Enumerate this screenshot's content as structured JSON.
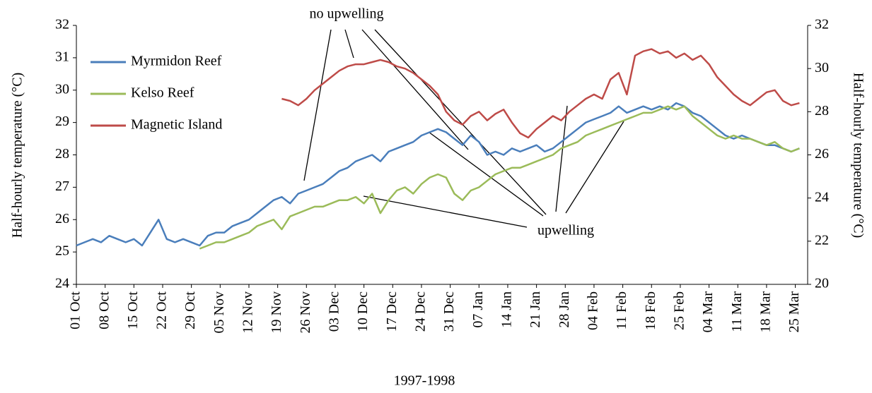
{
  "chart_data": {
    "type": "line",
    "x_label": "1997-1998",
    "y_label": "Half-hourly temperature (°C)",
    "y2_label": "Half-hourly temperature (°C)",
    "annotations": [
      "no upwelling",
      "upwelling"
    ],
    "legend": "top-left",
    "x": [
      0,
      2,
      4,
      6,
      8,
      10,
      12,
      14,
      16,
      18,
      20,
      22,
      24,
      26,
      28,
      30,
      32,
      34,
      36,
      38,
      40,
      42,
      44,
      46,
      48,
      50,
      52,
      54,
      56,
      58,
      60,
      62,
      64,
      66,
      68,
      70,
      72,
      74,
      76,
      78,
      80,
      82,
      84,
      86,
      88,
      90,
      92,
      94,
      96,
      98,
      100,
      102,
      104,
      106,
      108,
      110,
      112,
      114,
      116,
      118,
      120,
      122,
      124,
      126,
      128,
      130,
      132,
      134,
      136,
      138,
      140,
      142,
      144,
      146,
      148,
      150,
      152,
      154,
      156,
      158,
      160,
      162,
      164,
      166,
      168,
      170,
      172,
      174,
      176
    ],
    "xlim": [
      0,
      178
    ],
    "xticks": [
      {
        "value": 0,
        "label": "01 Oct"
      },
      {
        "value": 7,
        "label": "08 Oct"
      },
      {
        "value": 14,
        "label": "15 Oct"
      },
      {
        "value": 21,
        "label": "22 Oct"
      },
      {
        "value": 28,
        "label": "29 Oct"
      },
      {
        "value": 35,
        "label": "05 Nov"
      },
      {
        "value": 42,
        "label": "12 Nov"
      },
      {
        "value": 49,
        "label": "19 Nov"
      },
      {
        "value": 56,
        "label": "26 Nov"
      },
      {
        "value": 63,
        "label": "03 Dec"
      },
      {
        "value": 70,
        "label": "10 Dec"
      },
      {
        "value": 77,
        "label": "17 Dec"
      },
      {
        "value": 84,
        "label": "24 Dec"
      },
      {
        "value": 91,
        "label": "31 Dec"
      },
      {
        "value": 98,
        "label": "07 Jan"
      },
      {
        "value": 105,
        "label": "14 Jan"
      },
      {
        "value": 112,
        "label": "21 Jan"
      },
      {
        "value": 119,
        "label": "28 Jan"
      },
      {
        "value": 126,
        "label": "04 Feb"
      },
      {
        "value": 133,
        "label": "11 Feb"
      },
      {
        "value": 140,
        "label": "18 Feb"
      },
      {
        "value": 147,
        "label": "25 Feb"
      },
      {
        "value": 154,
        "label": "04 Mar"
      },
      {
        "value": 161,
        "label": "11 Mar"
      },
      {
        "value": 168,
        "label": "18 Mar"
      },
      {
        "value": 175,
        "label": "25 Mar"
      }
    ],
    "ylim": [
      24,
      32
    ],
    "yticks": [
      24,
      25,
      26,
      27,
      28,
      29,
      30,
      31,
      32
    ],
    "y2lim": [
      20,
      32
    ],
    "y2ticks": [
      20,
      22,
      24,
      26,
      28,
      30,
      32
    ],
    "series": [
      {
        "name": "Myrmidon Reef",
        "color": "#4a7ebb",
        "values": [
          25.2,
          25.3,
          25.4,
          25.3,
          25.5,
          25.4,
          25.3,
          25.4,
          25.2,
          25.6,
          26.0,
          25.4,
          25.3,
          25.4,
          25.3,
          25.2,
          25.5,
          25.6,
          25.6,
          25.8,
          25.9,
          26.0,
          26.2,
          26.4,
          26.6,
          26.7,
          26.5,
          26.8,
          26.9,
          27.0,
          27.1,
          27.3,
          27.5,
          27.6,
          27.8,
          27.9,
          28.0,
          27.8,
          28.1,
          28.2,
          28.3,
          28.4,
          28.6,
          28.7,
          28.8,
          28.7,
          28.5,
          28.3,
          28.6,
          28.4,
          28.0,
          28.1,
          28.0,
          28.2,
          28.1,
          28.2,
          28.3,
          28.1,
          28.2,
          28.4,
          28.6,
          28.8,
          29.0,
          29.1,
          29.2,
          29.3,
          29.5,
          29.3,
          29.4,
          29.5,
          29.4,
          29.5,
          29.4,
          29.6,
          29.5,
          29.3,
          29.2,
          29.0,
          28.8,
          28.6,
          28.5,
          28.6,
          28.5,
          28.4,
          28.3,
          28.3,
          28.2,
          28.1,
          28.2
        ]
      },
      {
        "name": "Kelso Reef",
        "color": "#9bbb59",
        "values": [
          null,
          null,
          null,
          null,
          null,
          null,
          null,
          null,
          null,
          null,
          null,
          null,
          null,
          null,
          null,
          25.1,
          25.2,
          25.3,
          25.3,
          25.4,
          25.5,
          25.6,
          25.8,
          25.9,
          26.0,
          25.7,
          26.1,
          26.2,
          26.3,
          26.4,
          26.4,
          26.5,
          26.6,
          26.6,
          26.7,
          26.5,
          26.8,
          26.2,
          26.6,
          26.9,
          27.0,
          26.8,
          27.1,
          27.3,
          27.4,
          27.3,
          26.8,
          26.6,
          26.9,
          27.0,
          27.2,
          27.4,
          27.5,
          27.6,
          27.6,
          27.7,
          27.8,
          27.9,
          28.0,
          28.2,
          28.3,
          28.4,
          28.6,
          28.7,
          28.8,
          28.9,
          29.0,
          29.1,
          29.2,
          29.3,
          29.3,
          29.4,
          29.5,
          29.4,
          29.5,
          29.2,
          29.0,
          28.8,
          28.6,
          28.5,
          28.6,
          28.5,
          28.5,
          28.4,
          28.3,
          28.4,
          28.2,
          28.1,
          28.2
        ]
      },
      {
        "name": "Magnetic Island",
        "color": "#be4b48",
        "axis": "y2",
        "values": [
          null,
          null,
          null,
          null,
          null,
          null,
          null,
          null,
          null,
          null,
          null,
          null,
          null,
          null,
          null,
          null,
          null,
          null,
          null,
          null,
          null,
          null,
          null,
          null,
          null,
          28.6,
          28.5,
          28.3,
          28.6,
          29.0,
          29.3,
          29.6,
          29.9,
          30.1,
          30.2,
          30.2,
          30.3,
          30.4,
          30.3,
          30.1,
          30.0,
          29.8,
          29.5,
          29.2,
          28.8,
          28.0,
          27.6,
          27.4,
          27.8,
          28.0,
          27.6,
          27.9,
          28.1,
          27.5,
          27.0,
          26.8,
          27.2,
          27.5,
          27.8,
          27.6,
          28.0,
          28.3,
          28.6,
          28.8,
          28.6,
          29.5,
          29.8,
          28.8,
          30.6,
          30.8,
          30.9,
          30.7,
          30.8,
          30.5,
          30.7,
          30.4,
          30.6,
          30.2,
          29.6,
          29.2,
          28.8,
          28.5,
          28.3,
          28.6,
          28.9,
          29.0,
          28.5,
          28.3,
          28.4
        ]
      }
    ]
  }
}
